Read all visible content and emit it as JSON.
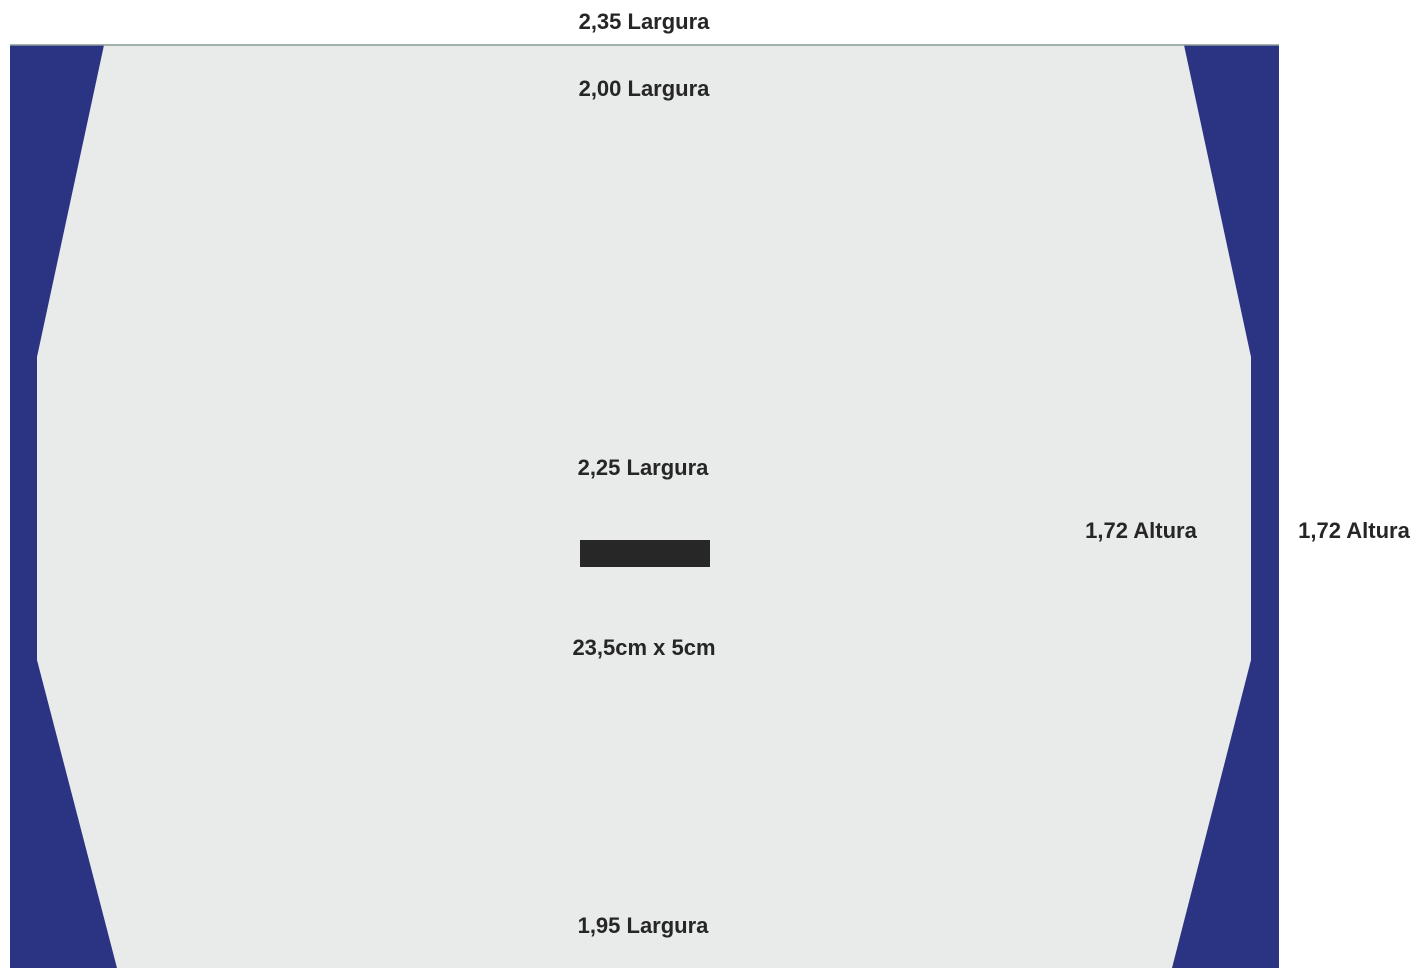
{
  "colors": {
    "background": "#ffffff",
    "outer_panel": "#2b3483",
    "inner_shape": "#e9ebea",
    "top_edge_line": "#8a9a94",
    "center_bar": "#272727",
    "text": "#262626"
  },
  "labels": {
    "outer_top_width": "2,35 Largura",
    "inner_top_width": "2,00 Largura",
    "middle_width": "2,25 Largura",
    "bottom_width": "1,95 Largura",
    "inner_height": "1,72 Altura",
    "outer_height": "1,72 Altura",
    "bar_size": "23,5cm x 5cm"
  },
  "icons": {
    "center_bar": "rectangle-bar"
  }
}
